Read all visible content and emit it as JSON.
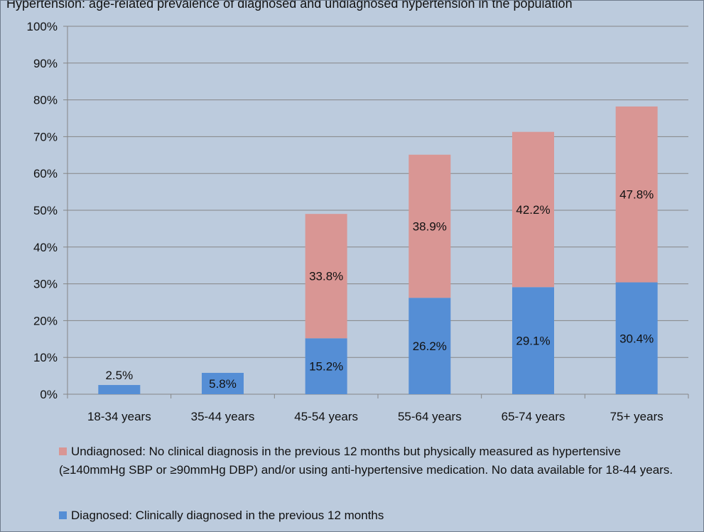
{
  "chart_data": {
    "type": "bar",
    "stacked": true,
    "categories": [
      "18-34 years",
      "35-44 years",
      "45-54 years",
      "55-64 years",
      "65-74 years",
      "75+ years"
    ],
    "series": [
      {
        "name": "Diagnosed: Clinically diagnosed in the previous 12 months",
        "color": "#558ed5",
        "values": [
          2.5,
          5.8,
          15.2,
          26.2,
          29.1,
          30.4
        ],
        "labels": [
          "2.5%",
          "5.8%",
          "15.2%",
          "26.2%",
          "29.1%",
          "30.4%"
        ]
      },
      {
        "name": "Undiagnosed: No clinical diagnosis in the previous 12 months but physically measured as hypertensive (≥140mmHg SBP or ≥90mmHg DBP) and/or using anti-hypertensive medication. No data available for 18-44 years.",
        "color": "#d99694",
        "values": [
          null,
          null,
          33.8,
          38.9,
          42.2,
          47.8
        ],
        "labels": [
          null,
          null,
          "33.8%",
          "38.9%",
          "42.2%",
          "47.8%"
        ]
      }
    ],
    "ylim": [
      0,
      100
    ],
    "yticks": [
      0,
      10,
      20,
      30,
      40,
      50,
      60,
      70,
      80,
      90,
      100
    ],
    "ytick_labels": [
      "0%",
      "10%",
      "20%",
      "30%",
      "40%",
      "50%",
      "60%",
      "70%",
      "80%",
      "90%",
      "100%"
    ],
    "grid": true,
    "legend_position": "bottom",
    "header_text": "Hypertension: age-related prevalence of diagnosed and undiagnosed hypertension in the population"
  }
}
